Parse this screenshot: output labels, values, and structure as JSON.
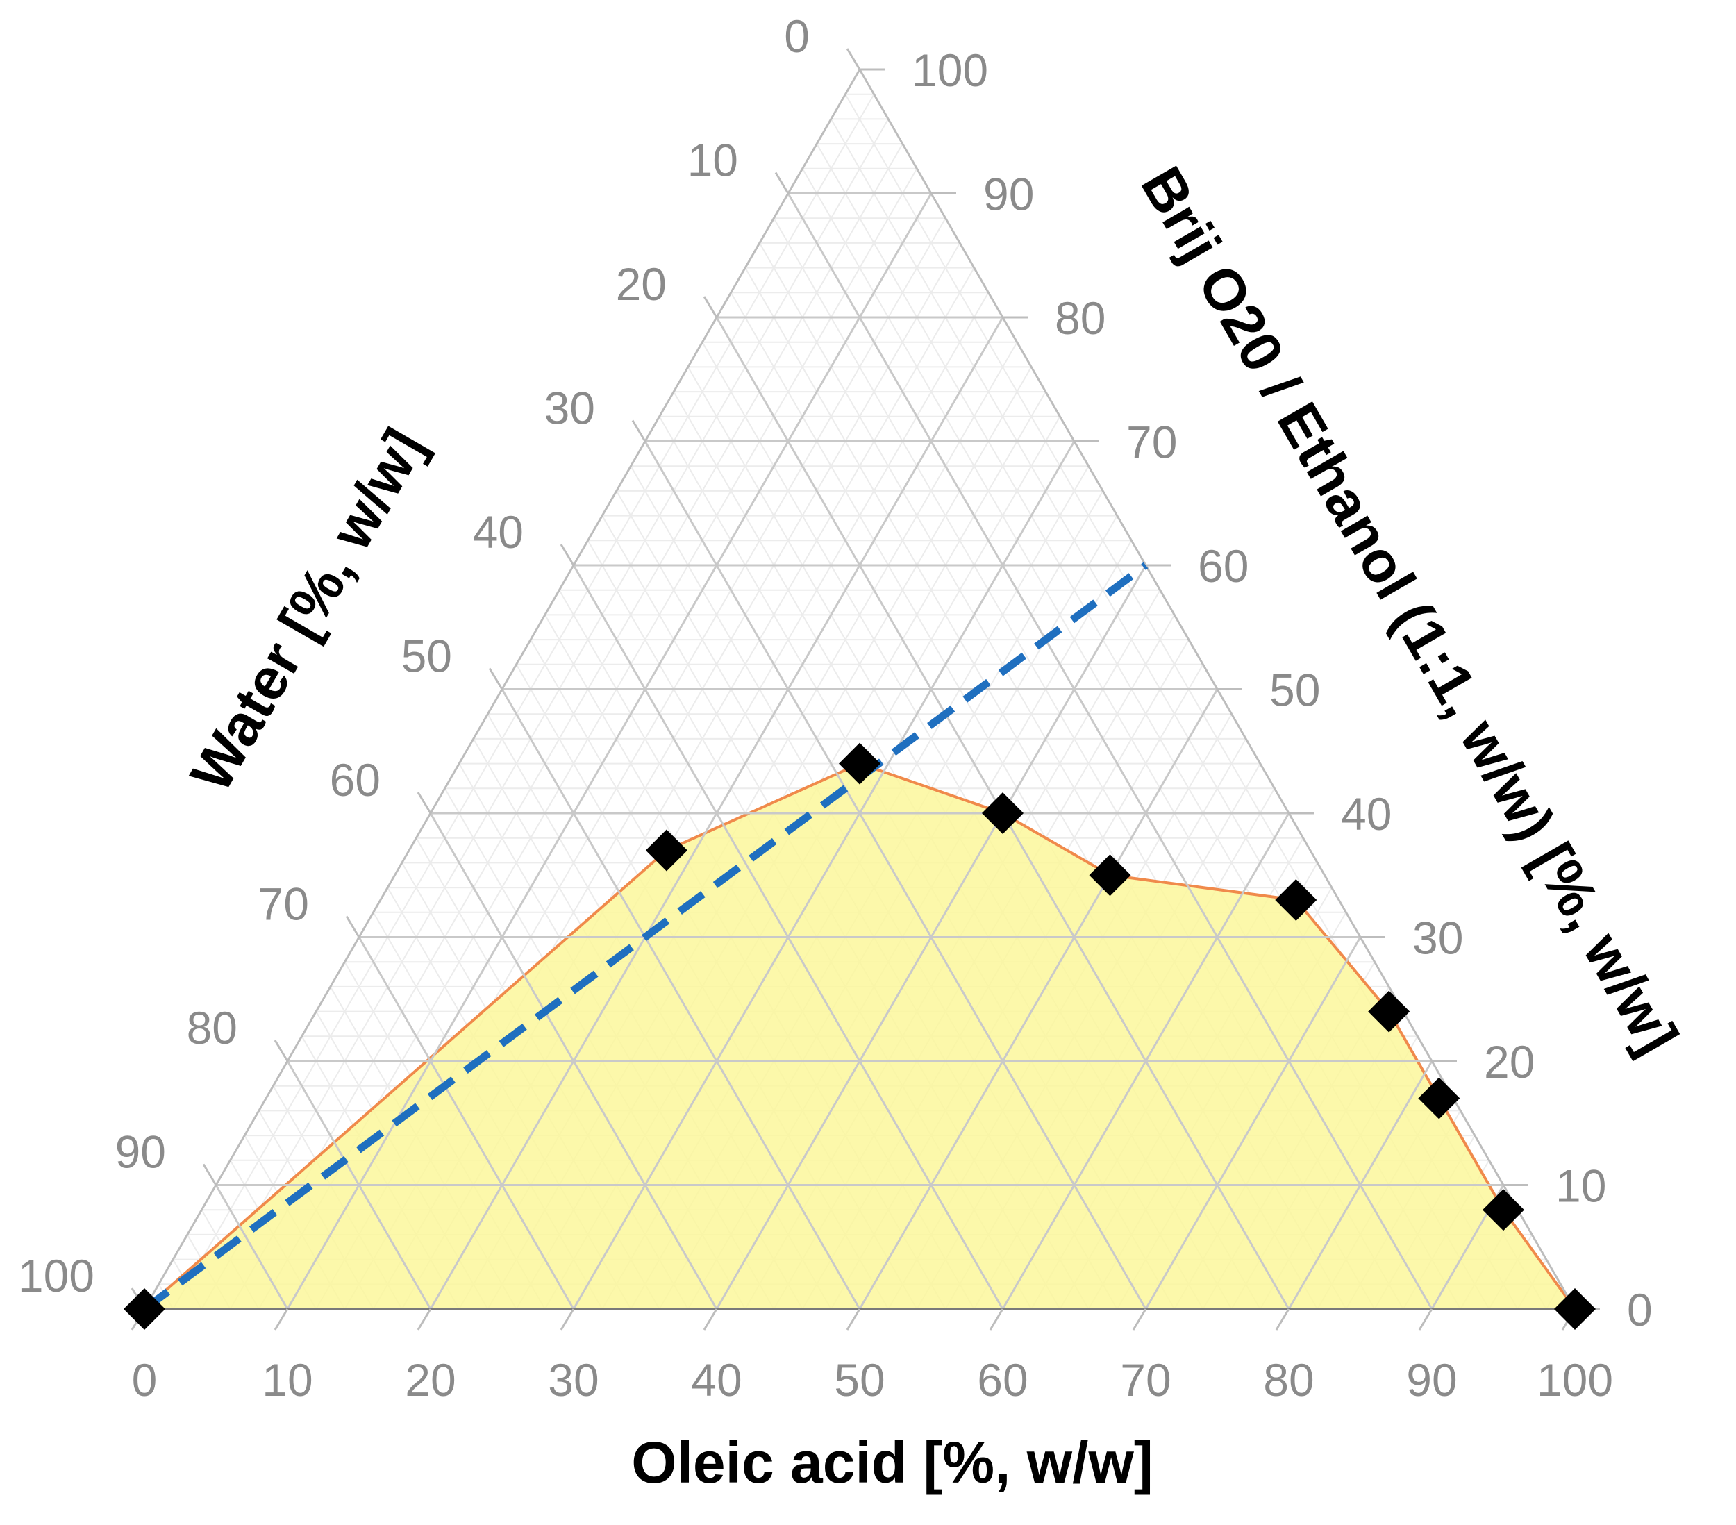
{
  "chart_data": {
    "type": "ternary",
    "axes": {
      "bottom": {
        "label": "Oleic acid [%, w/w]",
        "ticks": [
          "0",
          "10",
          "20",
          "30",
          "40",
          "50",
          "60",
          "70",
          "80",
          "90",
          "100"
        ]
      },
      "left": {
        "label": "Water [%, w/w]",
        "ticks": [
          "0",
          "10",
          "20",
          "30",
          "40",
          "50",
          "60",
          "70",
          "80",
          "90",
          "100"
        ]
      },
      "right": {
        "label": "Brij O20 / Ethanol (1:1, w/w) [%, w/w]",
        "ticks": [
          "0",
          "10",
          "20",
          "30",
          "40",
          "50",
          "60",
          "70",
          "80",
          "90",
          "100"
        ]
      }
    },
    "range": [
      0,
      100
    ],
    "grid": true,
    "minor_grid": true,
    "region": {
      "fill": "#fbf79b",
      "stroke": "#f08a4b",
      "description_points": "phase boundary through the points in order"
    },
    "series": [
      {
        "type": "scatter",
        "marker": "diamond",
        "color": "#000000",
        "points": [
          {
            "oleic": 0,
            "water": 100,
            "surfactant": 0
          },
          {
            "oleic": 18,
            "water": 45,
            "surfactant": 37
          },
          {
            "oleic": 28,
            "water": 28,
            "surfactant": 44
          },
          {
            "oleic": 40,
            "water": 20,
            "surfactant": 40
          },
          {
            "oleic": 50,
            "water": 15,
            "surfactant": 35
          },
          {
            "oleic": 64,
            "water": 3,
            "surfactant": 33
          },
          {
            "oleic": 75,
            "water": 1,
            "surfactant": 24
          },
          {
            "oleic": 82,
            "water": 1,
            "surfactant": 17
          },
          {
            "oleic": 91,
            "water": 1,
            "surfactant": 8
          },
          {
            "oleic": 100,
            "water": 0,
            "surfactant": 0
          }
        ]
      },
      {
        "type": "line",
        "style": "dashed",
        "color": "#1f6fbf",
        "points": [
          {
            "oleic": 0,
            "water": 100,
            "surfactant": 0
          },
          {
            "oleic": 40,
            "water": 0,
            "surfactant": 60
          }
        ]
      }
    ]
  }
}
